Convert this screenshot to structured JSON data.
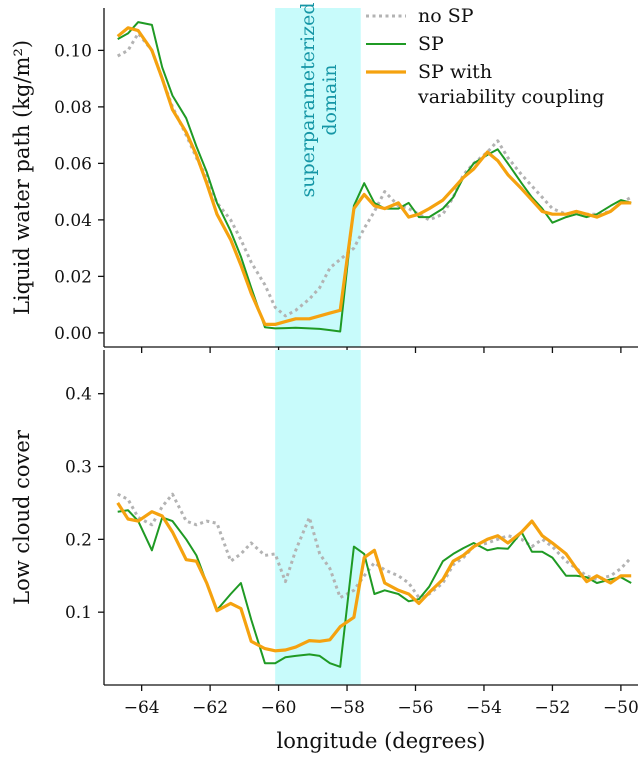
{
  "chart_data": [
    {
      "type": "line",
      "panel": "top",
      "ylabel": "Liquid water path (kg/m²)",
      "ylim": [
        -0.005,
        0.115
      ],
      "xlim": [
        -65.1,
        -49.5
      ],
      "yticks": [
        "0.00",
        "0.02",
        "0.04",
        "0.06",
        "0.08",
        "0.10"
      ],
      "ytick_values": [
        0.0,
        0.02,
        0.04,
        0.06,
        0.08,
        0.1
      ],
      "highlight": {
        "x0": -60.1,
        "x1": -57.6,
        "color": "#c8fbfb",
        "label": "superparameterized\ndomain"
      },
      "legend": {
        "placement": "top-right"
      },
      "series": [
        {
          "name": "no SP",
          "color": "#b3b3b3",
          "style": "dotted",
          "x": [
            -64.7,
            -64.4,
            -64.1,
            -63.7,
            -63.4,
            -63.1,
            -62.7,
            -62.4,
            -62.1,
            -61.8,
            -61.4,
            -61.1,
            -60.8,
            -60.4,
            -60.1,
            -59.8,
            -59.5,
            -59.1,
            -58.8,
            -58.5,
            -58.2,
            -57.8,
            -57.5,
            -57.2,
            -56.9,
            -56.5,
            -56.2,
            -55.9,
            -55.6,
            -55.2,
            -54.9,
            -54.6,
            -54.3,
            -53.9,
            -53.6,
            -53.3,
            -52.9,
            -52.6,
            -52.3,
            -52.0,
            -51.6,
            -51.3,
            -51.0,
            -50.7,
            -50.3,
            -50.0,
            -49.7
          ],
          "y": [
            0.098,
            0.1,
            0.106,
            0.1,
            0.09,
            0.08,
            0.07,
            0.062,
            0.055,
            0.046,
            0.04,
            0.033,
            0.025,
            0.017,
            0.009,
            0.006,
            0.008,
            0.012,
            0.016,
            0.023,
            0.026,
            0.03,
            0.037,
            0.043,
            0.05,
            0.045,
            0.044,
            0.042,
            0.04,
            0.042,
            0.048,
            0.056,
            0.06,
            0.064,
            0.068,
            0.062,
            0.056,
            0.052,
            0.048,
            0.044,
            0.042,
            0.043,
            0.042,
            0.042,
            0.043,
            0.046,
            0.048
          ]
        },
        {
          "name": "SP",
          "color": "#1f9a24",
          "style": "solid",
          "x": [
            -64.7,
            -64.4,
            -64.1,
            -63.7,
            -63.4,
            -63.1,
            -62.7,
            -62.4,
            -62.1,
            -61.8,
            -61.4,
            -61.1,
            -60.8,
            -60.4,
            -60.1,
            -59.8,
            -59.5,
            -59.1,
            -58.8,
            -58.5,
            -58.2,
            -57.8,
            -57.5,
            -57.2,
            -56.9,
            -56.5,
            -56.2,
            -55.9,
            -55.6,
            -55.2,
            -54.9,
            -54.6,
            -54.3,
            -53.9,
            -53.6,
            -53.3,
            -52.9,
            -52.6,
            -52.3,
            -52.0,
            -51.6,
            -51.3,
            -51.0,
            -50.7,
            -50.3,
            -50.0,
            -49.7
          ],
          "y": [
            0.104,
            0.106,
            0.11,
            0.109,
            0.094,
            0.084,
            0.076,
            0.066,
            0.057,
            0.046,
            0.036,
            0.027,
            0.016,
            0.002,
            0.0016,
            0.0017,
            0.0018,
            0.0016,
            0.0014,
            0.001,
            0.0005,
            0.045,
            0.053,
            0.046,
            0.044,
            0.044,
            0.046,
            0.041,
            0.041,
            0.044,
            0.048,
            0.055,
            0.06,
            0.063,
            0.065,
            0.06,
            0.053,
            0.048,
            0.044,
            0.039,
            0.041,
            0.042,
            0.041,
            0.042,
            0.045,
            0.047,
            0.046
          ]
        },
        {
          "name": "SP with variability coupling",
          "color": "#f5a20f",
          "style": "solid",
          "x": [
            -64.7,
            -64.4,
            -64.1,
            -63.7,
            -63.4,
            -63.1,
            -62.7,
            -62.4,
            -62.1,
            -61.8,
            -61.4,
            -61.1,
            -60.8,
            -60.4,
            -60.1,
            -59.8,
            -59.5,
            -59.1,
            -58.8,
            -58.5,
            -58.2,
            -57.8,
            -57.5,
            -57.2,
            -56.9,
            -56.5,
            -56.2,
            -55.9,
            -55.6,
            -55.2,
            -54.9,
            -54.6,
            -54.3,
            -53.9,
            -53.6,
            -53.3,
            -52.9,
            -52.6,
            -52.3,
            -52.0,
            -51.6,
            -51.3,
            -51.0,
            -50.7,
            -50.3,
            -50.0,
            -49.7
          ],
          "y": [
            0.105,
            0.108,
            0.107,
            0.1,
            0.09,
            0.079,
            0.071,
            0.063,
            0.053,
            0.042,
            0.033,
            0.024,
            0.014,
            0.003,
            0.003,
            0.004,
            0.005,
            0.005,
            0.006,
            0.007,
            0.008,
            0.044,
            0.049,
            0.045,
            0.044,
            0.046,
            0.041,
            0.042,
            0.044,
            0.047,
            0.051,
            0.055,
            0.058,
            0.064,
            0.061,
            0.056,
            0.051,
            0.047,
            0.043,
            0.042,
            0.042,
            0.043,
            0.042,
            0.041,
            0.043,
            0.046,
            0.046
          ]
        }
      ]
    },
    {
      "type": "line",
      "panel": "bottom",
      "xlabel": "longitude (degrees)",
      "ylabel": "Low cloud cover",
      "ylim": [
        0.0,
        0.46
      ],
      "xlim": [
        -65.1,
        -49.5
      ],
      "yticks": [
        "0.1",
        "0.2",
        "0.3",
        "0.4"
      ],
      "ytick_values": [
        0.1,
        0.2,
        0.3,
        0.4
      ],
      "xticks": [
        "−64",
        "−62",
        "−60",
        "−58",
        "−56",
        "−54",
        "−52",
        "−50"
      ],
      "xtick_values": [
        -64,
        -62,
        -60,
        -58,
        -56,
        -54,
        -52,
        -50
      ],
      "highlight": {
        "x0": -60.1,
        "x1": -57.6,
        "color": "#c8fbfb"
      },
      "series": [
        {
          "name": "no SP",
          "color": "#b3b3b3",
          "style": "dotted",
          "x": [
            -64.7,
            -64.4,
            -64.1,
            -63.7,
            -63.4,
            -63.1,
            -62.7,
            -62.4,
            -62.1,
            -61.8,
            -61.4,
            -61.1,
            -60.8,
            -60.4,
            -60.1,
            -59.8,
            -59.5,
            -59.1,
            -58.8,
            -58.5,
            -58.2,
            -57.8,
            -57.5,
            -57.2,
            -56.9,
            -56.5,
            -56.2,
            -55.9,
            -55.6,
            -55.2,
            -54.9,
            -54.6,
            -54.3,
            -53.9,
            -53.6,
            -53.3,
            -52.9,
            -52.6,
            -52.3,
            -52.0,
            -51.6,
            -51.3,
            -51.0,
            -50.7,
            -50.3,
            -50.0,
            -49.7
          ],
          "y": [
            0.262,
            0.255,
            0.23,
            0.22,
            0.245,
            0.262,
            0.225,
            0.22,
            0.225,
            0.222,
            0.17,
            0.18,
            0.195,
            0.178,
            0.18,
            0.142,
            0.185,
            0.23,
            0.18,
            0.16,
            0.12,
            0.13,
            0.15,
            0.168,
            0.158,
            0.15,
            0.14,
            0.12,
            0.125,
            0.14,
            0.165,
            0.175,
            0.19,
            0.195,
            0.2,
            0.205,
            0.2,
            0.19,
            0.2,
            0.19,
            0.17,
            0.16,
            0.15,
            0.145,
            0.15,
            0.16,
            0.175
          ]
        },
        {
          "name": "SP",
          "color": "#1f9a24",
          "style": "solid",
          "x": [
            -64.7,
            -64.4,
            -64.1,
            -63.7,
            -63.4,
            -63.1,
            -62.7,
            -62.4,
            -62.1,
            -61.8,
            -61.4,
            -61.1,
            -60.8,
            -60.4,
            -60.1,
            -59.8,
            -59.5,
            -59.1,
            -58.8,
            -58.5,
            -58.2,
            -57.8,
            -57.5,
            -57.2,
            -56.9,
            -56.5,
            -56.2,
            -55.9,
            -55.6,
            -55.2,
            -54.9,
            -54.6,
            -54.3,
            -53.9,
            -53.6,
            -53.3,
            -52.9,
            -52.6,
            -52.3,
            -52.0,
            -51.6,
            -51.3,
            -51.0,
            -50.7,
            -50.3,
            -50.0,
            -49.7
          ],
          "y": [
            0.238,
            0.24,
            0.225,
            0.185,
            0.23,
            0.225,
            0.2,
            0.178,
            0.14,
            0.103,
            0.125,
            0.14,
            0.09,
            0.03,
            0.03,
            0.038,
            0.04,
            0.042,
            0.04,
            0.03,
            0.025,
            0.19,
            0.18,
            0.125,
            0.13,
            0.125,
            0.115,
            0.118,
            0.135,
            0.17,
            0.18,
            0.188,
            0.195,
            0.185,
            0.188,
            0.187,
            0.21,
            0.183,
            0.183,
            0.175,
            0.15,
            0.15,
            0.148,
            0.14,
            0.145,
            0.148,
            0.14
          ]
        },
        {
          "name": "SP with variability coupling",
          "color": "#f5a20f",
          "style": "solid",
          "x": [
            -64.7,
            -64.4,
            -64.1,
            -63.7,
            -63.4,
            -63.1,
            -62.7,
            -62.4,
            -62.1,
            -61.8,
            -61.4,
            -61.1,
            -60.8,
            -60.4,
            -60.1,
            -59.8,
            -59.5,
            -59.1,
            -58.8,
            -58.5,
            -58.2,
            -57.8,
            -57.5,
            -57.2,
            -56.9,
            -56.5,
            -56.2,
            -55.9,
            -55.6,
            -55.2,
            -54.9,
            -54.6,
            -54.3,
            -53.9,
            -53.6,
            -53.3,
            -52.9,
            -52.6,
            -52.3,
            -52.0,
            -51.6,
            -51.3,
            -51.0,
            -50.7,
            -50.3,
            -50.0,
            -49.7
          ],
          "y": [
            0.25,
            0.228,
            0.225,
            0.238,
            0.232,
            0.21,
            0.172,
            0.17,
            0.14,
            0.102,
            0.112,
            0.105,
            0.06,
            0.05,
            0.047,
            0.048,
            0.052,
            0.061,
            0.06,
            0.062,
            0.08,
            0.093,
            0.175,
            0.185,
            0.14,
            0.13,
            0.125,
            0.112,
            0.127,
            0.145,
            0.17,
            0.178,
            0.19,
            0.2,
            0.205,
            0.195,
            0.21,
            0.225,
            0.205,
            0.195,
            0.18,
            0.16,
            0.142,
            0.15,
            0.14,
            0.15,
            0.15
          ]
        }
      ]
    }
  ]
}
